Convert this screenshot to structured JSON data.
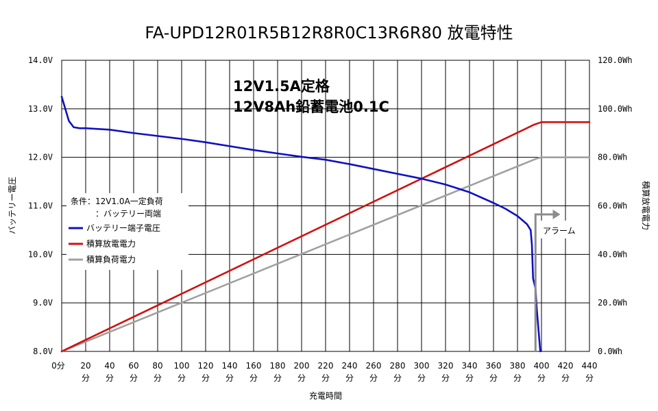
{
  "chart_data": {
    "type": "line",
    "title": "FA-UPD12R01R5B12R8R0C13R6R80 放電特性",
    "xlabel": "充電時間",
    "ylabel_left": "バッテリー電圧",
    "ylabel_right": "積算放電電力",
    "x_unit": "分",
    "xlim": [
      0,
      440
    ],
    "x_ticks": [
      0,
      20,
      40,
      60,
      80,
      100,
      120,
      140,
      160,
      180,
      200,
      220,
      240,
      260,
      280,
      300,
      320,
      340,
      360,
      380,
      400,
      420,
      440
    ],
    "ylim_left": [
      8.0,
      14.0
    ],
    "y_ticks_left": [
      "8.0V",
      "9.0V",
      "10.0V",
      "11.0V",
      "12.0V",
      "13.0V",
      "14.0V"
    ],
    "ylim_right": [
      0,
      120
    ],
    "y_ticks_right": [
      "0.0Wh",
      "20.0Wh",
      "40.0Wh",
      "60.0Wh",
      "80.0Wh",
      "100.0Wh",
      "120.0Wh"
    ],
    "grid": true,
    "annotations": {
      "rating_line1": "12V1.5A定格",
      "rating_line2": "12V8Ah鉛蓄電池0.1C",
      "condition_line1": "条件：12V1.0A一定負荷",
      "condition_line2": "：バッテリー両端",
      "alarm_label": "アラーム",
      "alarm_x": 395
    },
    "legend_position": "left",
    "series": [
      {
        "name": "バッテリー端子電圧",
        "axis": "left",
        "color": "#1010c0",
        "x": [
          0,
          3,
          6,
          10,
          15,
          20,
          40,
          60,
          80,
          100,
          120,
          140,
          160,
          180,
          200,
          220,
          240,
          260,
          280,
          300,
          320,
          340,
          360,
          370,
          380,
          388,
          391,
          392,
          393,
          394,
          395,
          396,
          397,
          398,
          399
        ],
        "y": [
          13.25,
          13.0,
          12.75,
          12.62,
          12.6,
          12.6,
          12.57,
          12.5,
          12.44,
          12.38,
          12.31,
          12.23,
          12.15,
          12.08,
          12.01,
          11.95,
          11.86,
          11.76,
          11.66,
          11.56,
          11.44,
          11.28,
          11.06,
          10.94,
          10.79,
          10.62,
          10.5,
          10.2,
          9.5,
          9.4,
          9.3,
          8.9,
          8.6,
          8.3,
          8.0
        ]
      },
      {
        "name": "積算放電電力",
        "axis": "right",
        "color": "#d01010",
        "x": [
          0,
          394,
          400,
          440
        ],
        "y": [
          0,
          93.5,
          94.5,
          94.5
        ]
      },
      {
        "name": "積算負荷電力",
        "axis": "right",
        "color": "#a0a0a0",
        "x": [
          0,
          396,
          400,
          440
        ],
        "y": [
          0,
          79.5,
          80,
          80
        ]
      }
    ]
  }
}
